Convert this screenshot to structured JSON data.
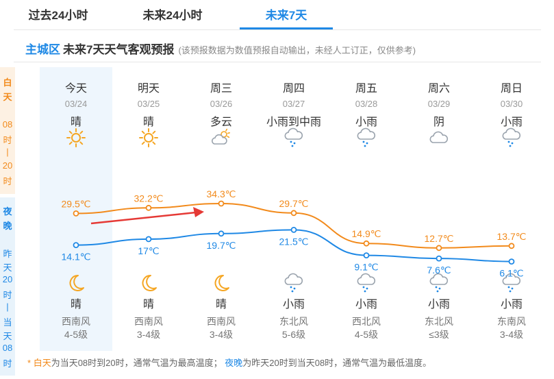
{
  "tabs": [
    {
      "label": "过去24小时"
    },
    {
      "label": "未来24小时"
    },
    {
      "label": "未来7天"
    }
  ],
  "active_tab": "未来7天",
  "title": {
    "district": "主城区",
    "main": "未来7天天气客观预报",
    "note": "(该预报数据为数值预报自动输出，未经人工订正，仅供参考)"
  },
  "side": {
    "day_title": [
      "白",
      "天"
    ],
    "day_time": [
      "08",
      "时",
      "|",
      "20",
      "时"
    ],
    "night_title": [
      "夜",
      "晚"
    ],
    "night_desc": [
      "昨",
      "天",
      "20",
      "时",
      "|",
      "当",
      "天",
      "08",
      "时"
    ]
  },
  "days": [
    {
      "name": "今天",
      "date": "03/24",
      "day_weather": "晴",
      "day_icon": "sun-icon",
      "night_weather": "晴",
      "night_icon": "moon-icon",
      "high": "29.5℃",
      "low": "14.1℃",
      "wind": "西南风",
      "wind_level": "4-5级"
    },
    {
      "name": "明天",
      "date": "03/25",
      "day_weather": "晴",
      "day_icon": "sun-icon",
      "night_weather": "晴",
      "night_icon": "moon-icon",
      "high": "32.2℃",
      "low": "17℃",
      "wind": "西南风",
      "wind_level": "3-4级"
    },
    {
      "name": "周三",
      "date": "03/26",
      "day_weather": "多云",
      "day_icon": "partly-cloudy-icon",
      "night_weather": "晴",
      "night_icon": "moon-icon",
      "high": "34.3℃",
      "low": "19.7℃",
      "wind": "西南风",
      "wind_level": "3-4级"
    },
    {
      "name": "周四",
      "date": "03/27",
      "day_weather": "小雨到中雨",
      "day_icon": "rain-icon",
      "night_weather": "小雨",
      "night_icon": "rain-icon",
      "high": "29.7℃",
      "low": "21.5℃",
      "wind": "东北风",
      "wind_level": "5-6级"
    },
    {
      "name": "周五",
      "date": "03/28",
      "day_weather": "小雨",
      "day_icon": "rain-icon",
      "night_weather": "小雨",
      "night_icon": "rain-icon",
      "high": "14.9℃",
      "low": "9.1℃",
      "wind": "西北风",
      "wind_level": "4-5级"
    },
    {
      "name": "周六",
      "date": "03/29",
      "day_weather": "阴",
      "day_icon": "cloud-icon",
      "night_weather": "小雨",
      "night_icon": "rain-icon",
      "high": "12.7℃",
      "low": "7.6℃",
      "wind": "东北风",
      "wind_level": "≤3级"
    },
    {
      "name": "周日",
      "date": "03/30",
      "day_weather": "小雨",
      "day_icon": "rain-icon",
      "night_weather": "小雨",
      "night_icon": "rain-icon",
      "high": "13.7℃",
      "low": "6.1℃",
      "wind": "东南风",
      "wind_level": "3-4级"
    }
  ],
  "footnote": {
    "star": "*",
    "day_word": "白天",
    "day_desc": "为当天08时到20时，通常气温为最高温度；",
    "night_word": "夜晚",
    "night_desc": "为昨天20时到当天08时，通常气温为最低温度。"
  },
  "colors": {
    "accent": "#1e88e5",
    "high_line": "#f28a1b",
    "low_line": "#1e88e5",
    "arrow": "#e53935"
  }
}
